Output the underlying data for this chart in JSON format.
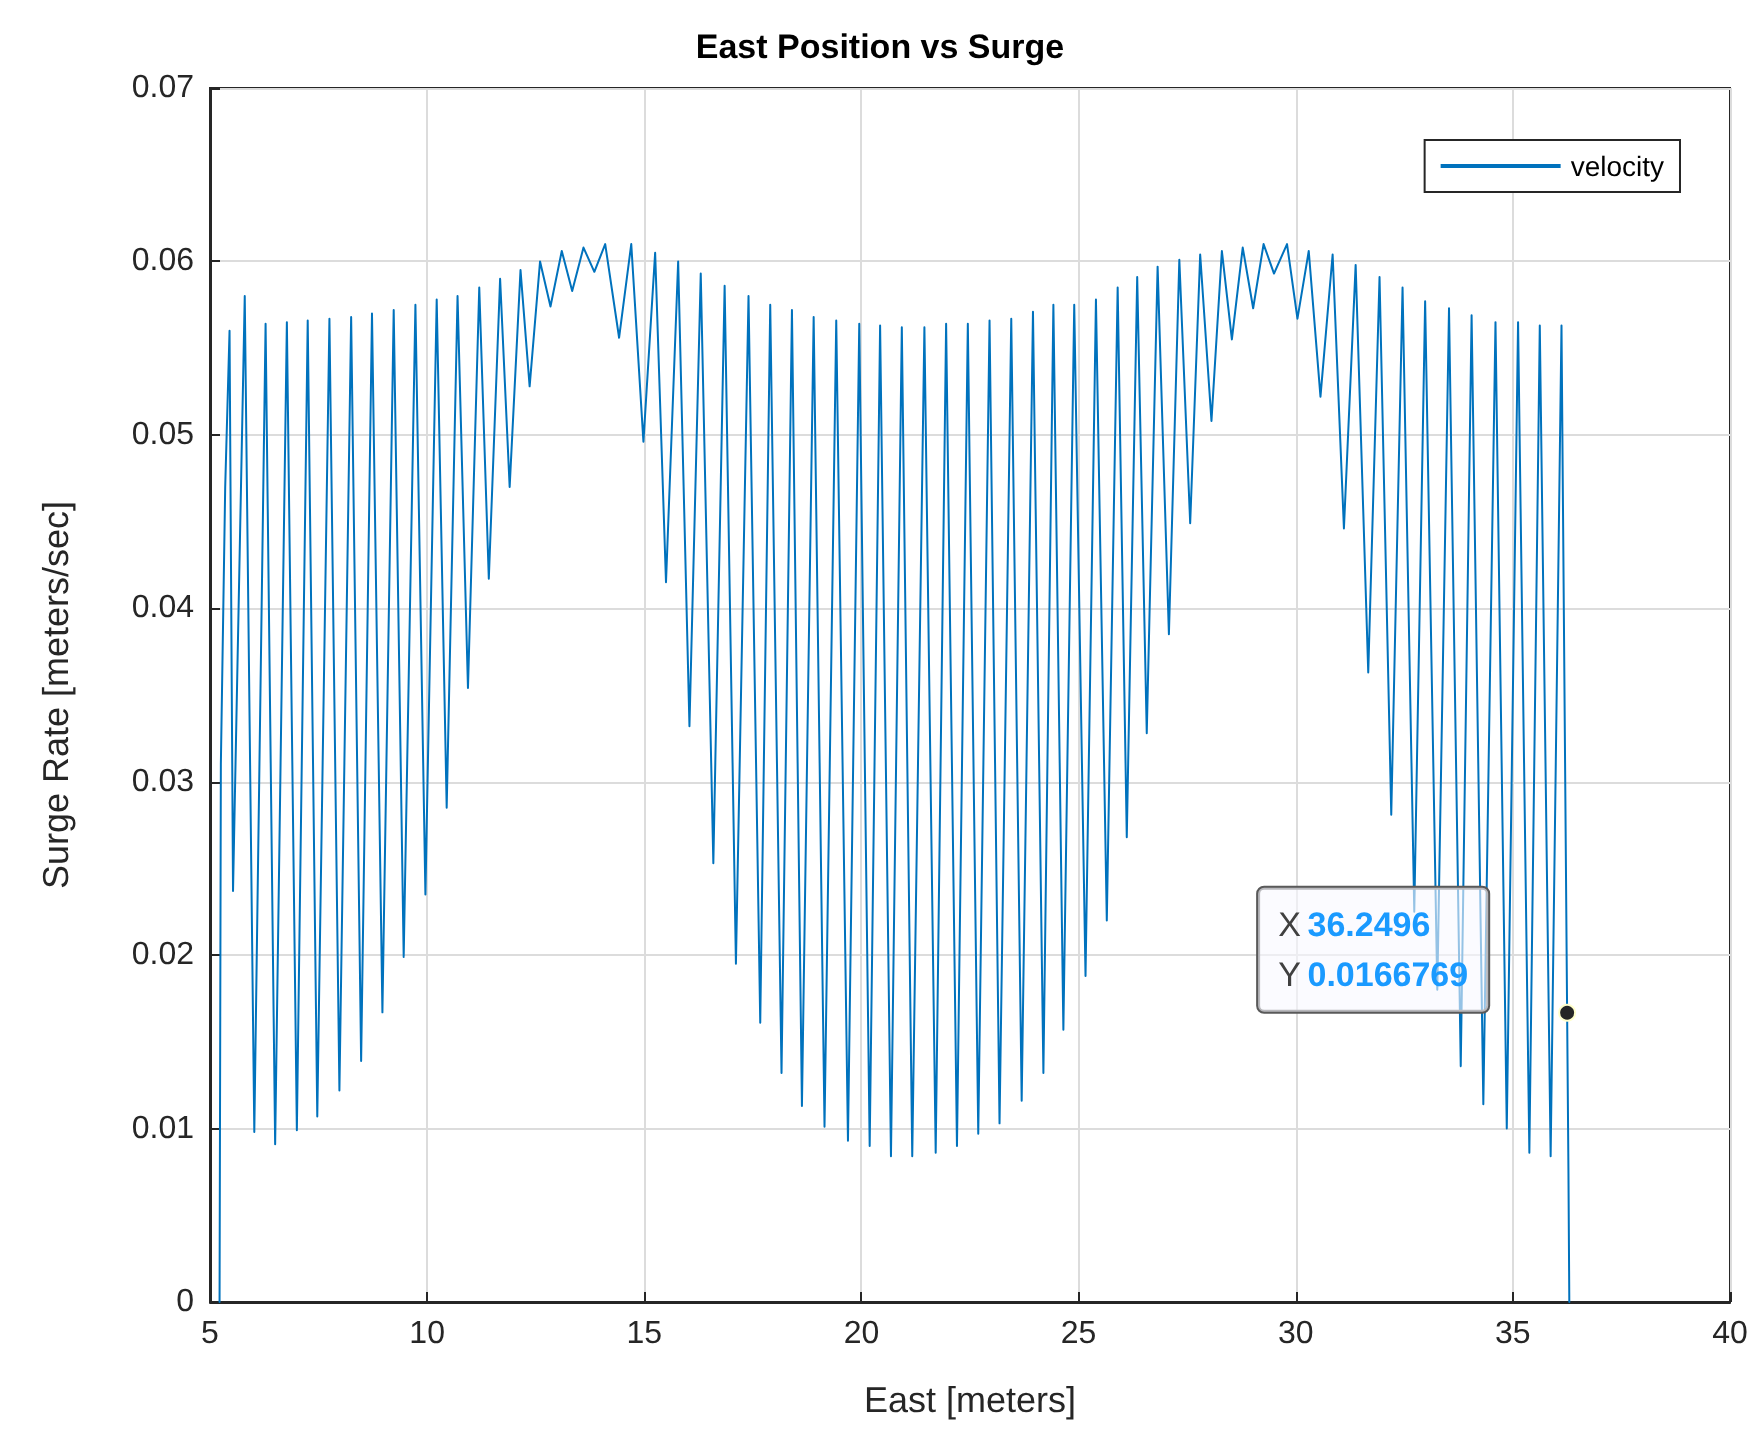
{
  "chart_data": {
    "type": "line",
    "title": "East Position vs Surge",
    "xlabel": "East [meters]",
    "ylabel": "Surge Rate [meters/sec]",
    "xlim": [
      5,
      40
    ],
    "xticks": [
      5,
      10,
      15,
      20,
      25,
      30,
      35,
      40
    ],
    "ylim": [
      0,
      0.07
    ],
    "yticks": [
      0,
      0.01,
      0.02,
      0.03,
      0.04,
      0.05,
      0.06,
      0.07
    ],
    "grid": true,
    "legend": "top right",
    "marker": "none",
    "line_style": "solid",
    "annotations": [
      {
        "text": "X 36.2496\nY 0.0166769",
        "x": 36.2496,
        "y": 0.0166769
      }
    ],
    "series": [
      {
        "name": "velocity",
        "color": "#0072bd",
        "x": [
          5.22,
          5.25,
          5.35,
          5.45,
          5.53,
          5.8,
          6.02,
          6.28,
          6.5,
          6.77,
          7.0,
          7.25,
          7.47,
          7.75,
          7.98,
          8.25,
          8.48,
          8.73,
          8.97,
          9.23,
          9.46,
          9.73,
          9.96,
          10.22,
          10.45,
          10.7,
          10.94,
          11.2,
          11.42,
          11.68,
          11.9,
          12.15,
          12.36,
          12.6,
          12.84,
          13.1,
          13.34,
          13.6,
          13.85,
          14.1,
          14.42,
          14.7,
          14.98,
          15.25,
          15.5,
          15.78,
          16.04,
          16.3,
          16.59,
          16.85,
          17.11,
          17.4,
          17.67,
          17.9,
          18.16,
          18.4,
          18.63,
          18.9,
          19.15,
          19.42,
          19.69,
          19.95,
          20.19,
          20.43,
          20.68,
          20.93,
          21.17,
          21.45,
          21.71,
          21.95,
          22.2,
          22.45,
          22.69,
          22.95,
          23.18,
          23.45,
          23.69,
          23.95,
          24.19,
          24.42,
          24.65,
          24.9,
          25.16,
          25.4,
          25.65,
          25.9,
          26.11,
          26.35,
          26.57,
          26.82,
          27.08,
          27.32,
          27.57,
          27.8,
          28.06,
          28.3,
          28.53,
          28.78,
          29.02,
          29.26,
          29.5,
          29.8,
          30.04,
          30.3,
          30.57,
          30.85,
          31.11,
          31.38,
          31.67,
          31.93,
          32.2,
          32.46,
          32.73,
          32.98,
          33.26,
          33.53,
          33.8,
          34.05,
          34.32,
          34.6,
          34.86,
          35.12,
          35.38,
          35.62,
          35.87,
          36.12,
          36.2496,
          36.28,
          36.3
        ],
        "values": [
          0,
          0.031,
          0.047,
          0.056,
          0.0237,
          0.058,
          0.0098,
          0.0564,
          0.0091,
          0.0565,
          0.0099,
          0.0566,
          0.0107,
          0.0567,
          0.0122,
          0.0568,
          0.0139,
          0.057,
          0.0167,
          0.0572,
          0.0199,
          0.0575,
          0.0235,
          0.0578,
          0.0285,
          0.058,
          0.0354,
          0.0585,
          0.0417,
          0.059,
          0.047,
          0.0595,
          0.0528,
          0.06,
          0.0574,
          0.0606,
          0.0583,
          0.0608,
          0.0594,
          0.061,
          0.0556,
          0.061,
          0.0496,
          0.0605,
          0.0415,
          0.06,
          0.0332,
          0.0593,
          0.0253,
          0.0586,
          0.0195,
          0.058,
          0.0161,
          0.0575,
          0.0132,
          0.0572,
          0.0113,
          0.0568,
          0.0101,
          0.0566,
          0.0093,
          0.0564,
          0.009,
          0.0563,
          0.0084,
          0.0562,
          0.0084,
          0.0562,
          0.0086,
          0.0564,
          0.009,
          0.0564,
          0.0097,
          0.0566,
          0.0103,
          0.0567,
          0.0116,
          0.0571,
          0.0132,
          0.0575,
          0.0157,
          0.0575,
          0.0188,
          0.0578,
          0.022,
          0.0585,
          0.0268,
          0.0591,
          0.0328,
          0.0597,
          0.0385,
          0.0601,
          0.0449,
          0.0604,
          0.0508,
          0.0606,
          0.0555,
          0.0608,
          0.0573,
          0.061,
          0.0593,
          0.061,
          0.0567,
          0.0606,
          0.0522,
          0.0604,
          0.0446,
          0.0598,
          0.0363,
          0.0591,
          0.0281,
          0.0585,
          0.0225,
          0.0577,
          0.018,
          0.0573,
          0.0136,
          0.0569,
          0.0114,
          0.0565,
          0.01,
          0.0565,
          0.0086,
          0.0563,
          0.0084,
          0.0563,
          0.0166769,
          0.0075,
          0
        ]
      }
    ]
  }
}
